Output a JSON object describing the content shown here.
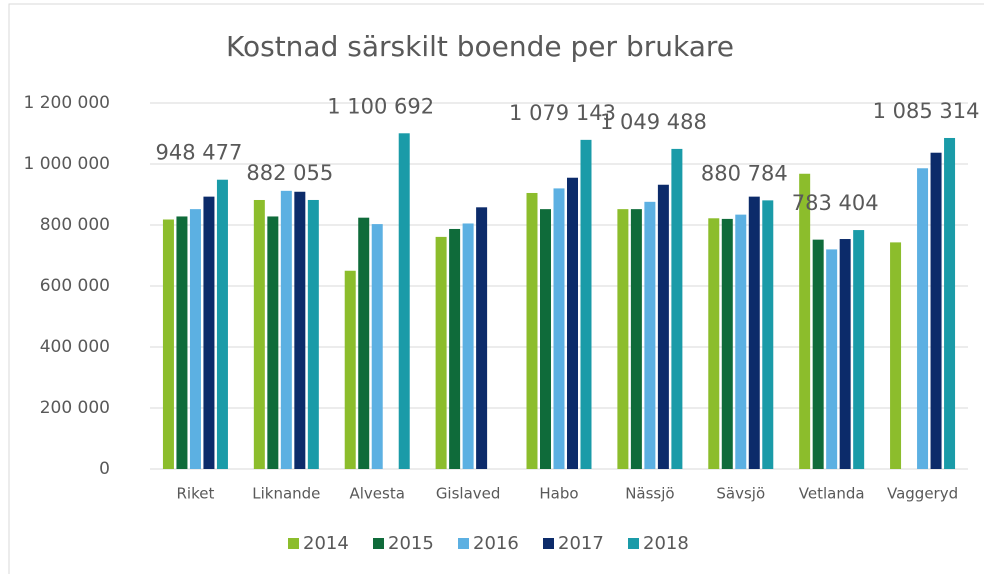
{
  "chart_data": {
    "type": "bar",
    "title": "Kostnad särskilt boende per brukare",
    "categories": [
      "Riket",
      "Liknande",
      "Alvesta",
      "Gislaved",
      "Habo",
      "Nässjö",
      "Sävsjö",
      "Vetlanda",
      "Vaggeryd"
    ],
    "series": [
      {
        "name": "2014",
        "color": "#8cbd2c",
        "values": [
          818000,
          882000,
          650000,
          761000,
          905000,
          852000,
          822000,
          968000,
          743000
        ]
      },
      {
        "name": "2015",
        "color": "#0f6b3a",
        "values": [
          828000,
          828000,
          824000,
          787000,
          852000,
          852000,
          820000,
          752000,
          null
        ]
      },
      {
        "name": "2016",
        "color": "#5cb0e2",
        "values": [
          852000,
          912000,
          803000,
          805000,
          920000,
          876000,
          834000,
          720000,
          986000
        ]
      },
      {
        "name": "2017",
        "color": "#0c2b6a",
        "values": [
          893000,
          909000,
          null,
          858000,
          955000,
          932000,
          893000,
          754000,
          1037000
        ]
      },
      {
        "name": "2018",
        "color": "#1a9ba8",
        "values": [
          948477,
          882055,
          1100692,
          null,
          1079143,
          1049488,
          880784,
          783404,
          1085314
        ],
        "value_labels": [
          "948 477",
          "882 055",
          "1 100 692",
          null,
          "1 079 143",
          "1 049 488",
          "880 784",
          "783 404",
          "1 085 314"
        ]
      }
    ],
    "ylim": [
      0,
      1200000
    ],
    "yticks": [
      0,
      {
        "value": 200000,
        "label": "200 000"
      },
      {
        "value": 400000,
        "label": "400 000"
      },
      {
        "value": 600000,
        "label": "600 000"
      },
      {
        "value": 800000,
        "label": "800 000"
      },
      {
        "value": 1000000,
        "label": "1 000 000"
      },
      {
        "value": 1200000,
        "label": "1 200 000"
      }
    ],
    "grid": true,
    "legend": "bottom"
  }
}
